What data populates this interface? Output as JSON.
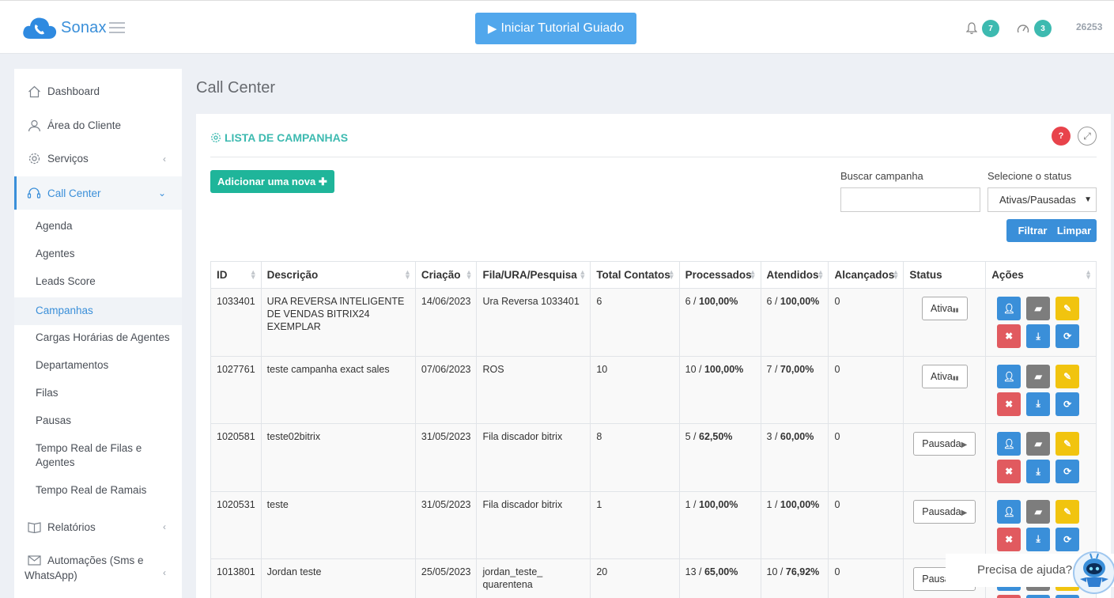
{
  "header": {
    "logo_text": "Sonax",
    "tutorial_label": "Iniciar Tutorial Guiado",
    "notifications_count": "7",
    "tasks_count": "3",
    "user_id": "26253"
  },
  "sidebar": {
    "items": [
      {
        "label": "Dashboard",
        "icon": "home-icon"
      },
      {
        "label": "Área do Cliente",
        "icon": "user-icon"
      },
      {
        "label": "Serviços",
        "icon": "gear-icon"
      },
      {
        "label": "Call Center",
        "icon": "headset-icon"
      }
    ],
    "sub_items": [
      "Agenda",
      "Agentes",
      "Leads Score",
      "Campanhas",
      "Cargas Horárias de Agentes",
      "Departamentos",
      "Filas",
      "Pausas",
      "Tempo Real de Filas e Agentes",
      "Tempo Real de Ramais"
    ],
    "bottom_items": [
      {
        "label": "Relatórios",
        "icon": "book-icon"
      },
      {
        "label": "Automações (Sms e WhatsApp)",
        "icon": "envelope-icon"
      }
    ]
  },
  "page": {
    "title": "Call Center",
    "panel_title": "LISTA DE CAMPANHAS",
    "help_symbol": "?",
    "add_label": "Adicionar uma nova",
    "search_label": "Buscar campanha",
    "search_value": "",
    "status_label": "Selecione o status",
    "status_value": "Ativas/Pausadas",
    "filter_label": "Filtrar",
    "clear_label": "Limpar"
  },
  "table": {
    "headers": [
      "ID",
      "Descrição",
      "Criação",
      "Fila/URA/Pesquisa",
      "Total Contatos",
      "Processados",
      "Atendidos",
      "Alcançados",
      "Status",
      "Ações"
    ],
    "rows": [
      {
        "id": "1033401",
        "desc": "URA REVERSA INTELIGENTE DE VENDAS BITRIX24 EXEMPLAR",
        "date": "14/06/2023",
        "queue": "Ura Reversa 1033401",
        "total": "6",
        "proc_n": "6",
        "proc_p": "100,00%",
        "att_n": "6",
        "att_p": "100,00%",
        "reached": "0",
        "status": "Ativa"
      },
      {
        "id": "1027761",
        "desc": "teste campanha exact sales",
        "date": "07/06/2023",
        "queue": "ROS",
        "total": "10",
        "proc_n": "10",
        "proc_p": "100,00%",
        "att_n": "7",
        "att_p": "70,00%",
        "reached": "0",
        "status": "Ativa"
      },
      {
        "id": "1020581",
        "desc": "teste02bitrix",
        "date": "31/05/2023",
        "queue": "Fila discador bitrix",
        "total": "8",
        "proc_n": "5",
        "proc_p": "62,50%",
        "att_n": "3",
        "att_p": "60,00%",
        "reached": "0",
        "status": "Pausada"
      },
      {
        "id": "1020531",
        "desc": "teste",
        "date": "31/05/2023",
        "queue": "Fila discador bitrix",
        "total": "1",
        "proc_n": "1",
        "proc_p": "100,00%",
        "att_n": "1",
        "att_p": "100,00%",
        "reached": "0",
        "status": "Pausada"
      },
      {
        "id": "1013801",
        "desc": "Jordan teste",
        "date": "25/05/2023",
        "queue": "jordan_teste_ quarentena",
        "total": "20",
        "proc_n": "13",
        "proc_p": "65,00%",
        "att_n": "10",
        "att_p": "76,92%",
        "reached": "0",
        "status": "Pausada"
      }
    ]
  },
  "help_widget": {
    "text": "Precisa de ajuda?"
  },
  "colors": {
    "accent": "#3a8fd9",
    "teal": "#3dbab0",
    "green": "#1fb59a",
    "red": "#e15a5f",
    "yellow": "#f1c40f"
  }
}
